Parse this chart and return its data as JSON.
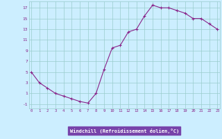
{
  "x": [
    0,
    1,
    2,
    3,
    4,
    5,
    6,
    7,
    8,
    9,
    10,
    11,
    12,
    13,
    14,
    15,
    16,
    17,
    18,
    19,
    20,
    21,
    22,
    23
  ],
  "y": [
    5,
    3,
    2,
    1,
    0.5,
    0,
    -0.5,
    -0.8,
    1,
    5.5,
    9.5,
    10,
    12.5,
    13,
    15.5,
    17.5,
    17,
    17,
    16.5,
    16,
    15,
    15,
    14,
    13
  ],
  "line_color": "#882288",
  "marker": "+",
  "marker_size": 3,
  "bg_color": "#cceeff",
  "grid_color": "#99cccc",
  "xlabel": "Windchill (Refroidissement éolien,°C)",
  "xlabel_color": "#ffffff",
  "xlabel_bg": "#7744aa",
  "yticks": [
    -1,
    1,
    3,
    5,
    7,
    9,
    11,
    13,
    15,
    17
  ],
  "xticks": [
    0,
    1,
    2,
    3,
    4,
    5,
    6,
    7,
    8,
    9,
    10,
    11,
    12,
    13,
    14,
    15,
    16,
    17,
    18,
    19,
    20,
    21,
    22,
    23
  ],
  "ylim": [
    -1.8,
    18.2
  ],
  "xlim": [
    -0.3,
    23.3
  ]
}
